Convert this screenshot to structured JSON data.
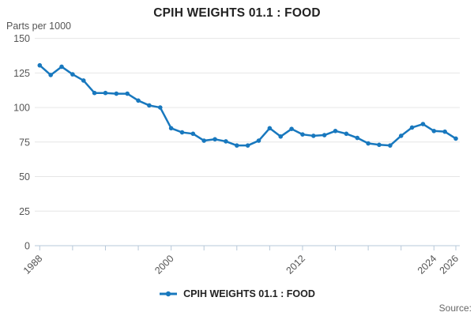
{
  "header": {
    "title": "CPIH WEIGHTS 01.1 : FOOD"
  },
  "chart_data": {
    "type": "line",
    "title": "CPIH WEIGHTS 01.1 : FOOD",
    "ylabel": "Parts per 1000",
    "series_name": "CPIH WEIGHTS 01.1 : FOOD",
    "x": [
      1988,
      1989,
      1990,
      1991,
      1992,
      1993,
      1994,
      1995,
      1996,
      1997,
      1998,
      1999,
      2000,
      2001,
      2002,
      2003,
      2004,
      2005,
      2006,
      2007,
      2008,
      2009,
      2010,
      2011,
      2012,
      2013,
      2014,
      2015,
      2016,
      2017,
      2018,
      2019,
      2020,
      2021,
      2022,
      2023,
      2024,
      2025,
      2026
    ],
    "values": [
      130.5,
      123.5,
      129.5,
      124,
      119.5,
      110.5,
      110.5,
      110,
      110,
      105,
      101.5,
      100,
      85,
      82,
      81,
      76,
      77,
      75.5,
      72.5,
      72.5,
      76,
      85,
      79,
      84.5,
      80.5,
      79.5,
      80,
      83,
      81,
      78,
      74,
      73,
      72.5,
      79.5,
      85.5,
      88,
      83,
      82.5,
      77.5
    ],
    "ylim": [
      0,
      150
    ],
    "yticks": [
      0,
      25,
      50,
      75,
      100,
      125,
      150
    ],
    "xticks": [
      1988,
      1991,
      1994,
      1997,
      2000,
      2003,
      2006,
      2009,
      2012,
      2015,
      2018,
      2021,
      2024,
      2026
    ],
    "labeled_xticks": [
      1988,
      2000,
      2012,
      2024,
      2026
    ],
    "grid": true,
    "legend_position": "bottom-center"
  },
  "legend": {
    "label": "CPIH WEIGHTS 01.1 : FOOD"
  },
  "footer": {
    "source_label": "Source:"
  },
  "colors": {
    "line": "#1878be",
    "grid": "#e6e6e6",
    "axis": "#b7c8d9",
    "tick_text": "#555555",
    "title_text": "#222222"
  }
}
